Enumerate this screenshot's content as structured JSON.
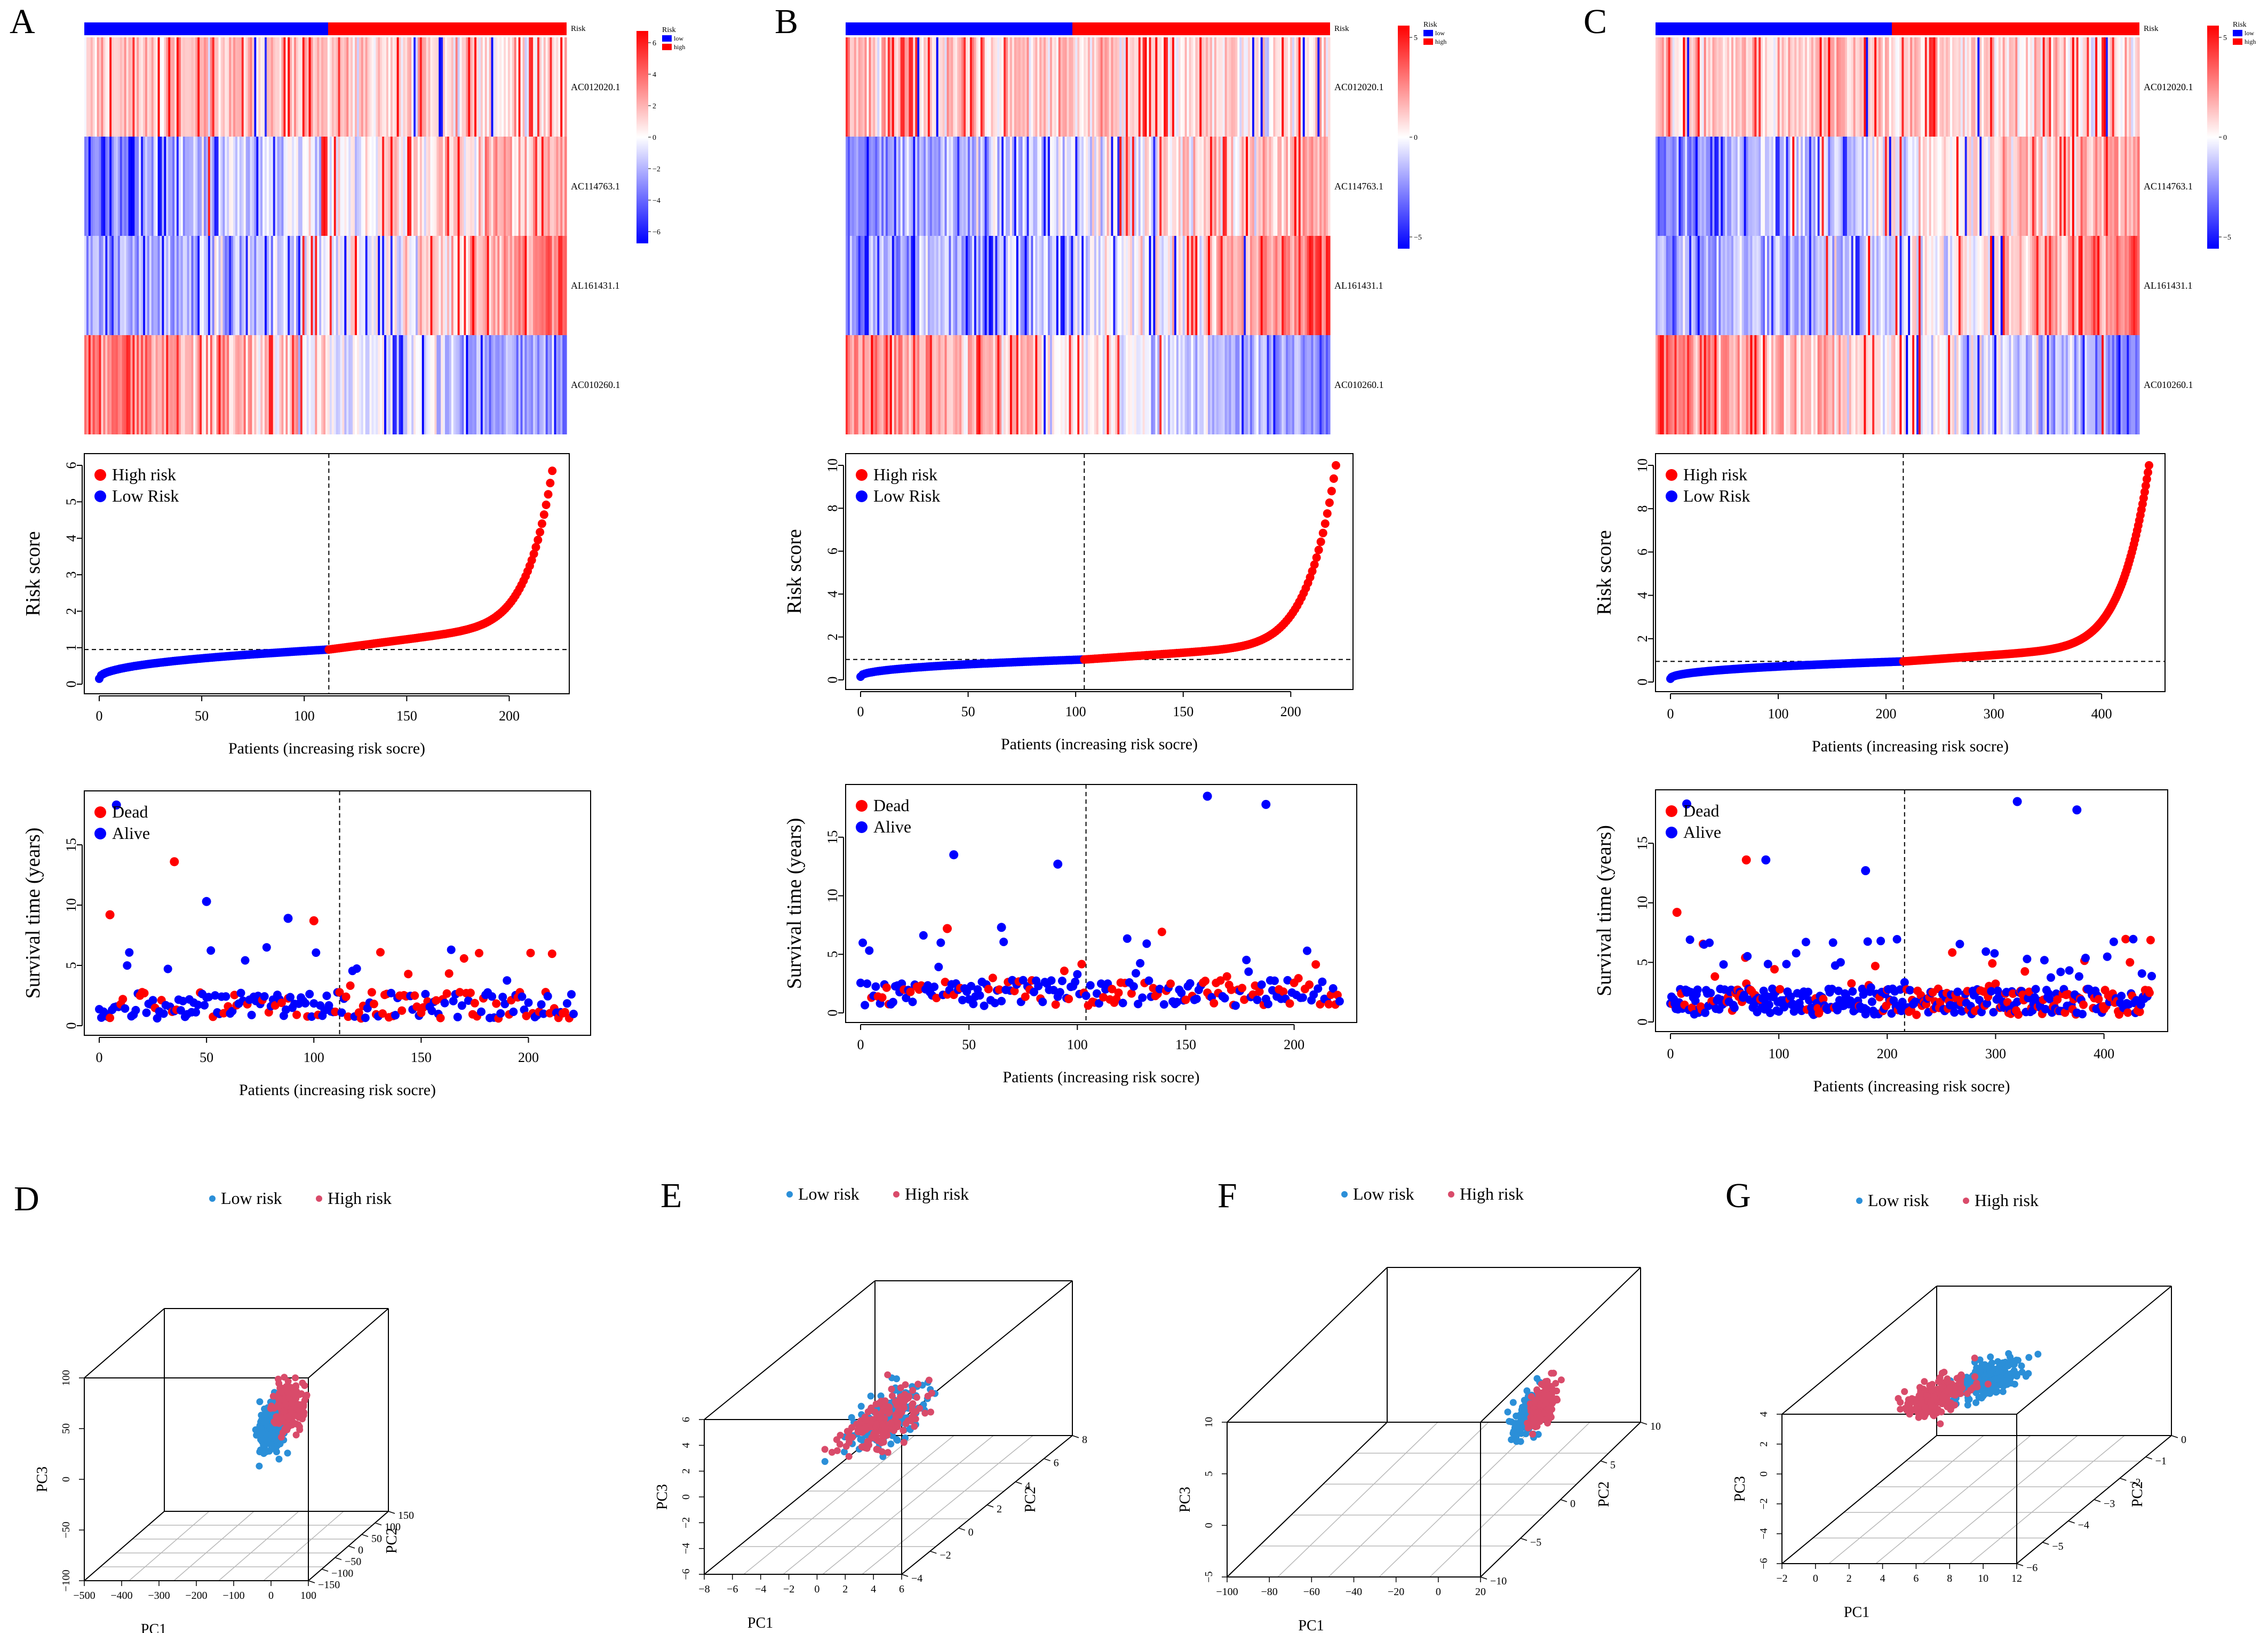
{
  "figure": {
    "panel_labels": [
      "A",
      "B",
      "C",
      "D",
      "E",
      "F",
      "G"
    ],
    "colors": {
      "red": "#ff0000",
      "blue": "#0000ff",
      "pca_low": "#2b8fd8",
      "pca_high": "#d94b6a",
      "grid": "#b8b8b8"
    }
  },
  "heatmap": {
    "genes": [
      "AC012020.1",
      "AC114763.1",
      "AL161431.1",
      "AC010260.1"
    ],
    "risk_label": "Risk",
    "legend_title": "Risk",
    "legend_items": [
      "low",
      "high"
    ],
    "scales": [
      {
        "ticks": [
          "6",
          "4",
          "2",
          "0",
          "−2",
          "−4",
          "−6"
        ]
      },
      {
        "ticks": [
          "5",
          "0",
          "−5"
        ]
      },
      {
        "ticks": [
          "5",
          "0",
          "−5"
        ]
      }
    ]
  },
  "chart_data": [
    {
      "panel": "A",
      "type": "scatter",
      "subtype": "risk_score_curve",
      "n_patients": 222,
      "cutoff_index": 112,
      "cutoff_score": 0.95,
      "xlabel": "Patients (increasing risk socre)",
      "ylabel": "Risk score",
      "xticks": [
        0,
        50,
        100,
        150,
        200
      ],
      "yticks": [
        0,
        1,
        2,
        3,
        4,
        5,
        6
      ],
      "ylim": [
        0,
        6
      ],
      "max_score": 5.85,
      "legend": [
        "High risk",
        "Low Risk"
      ]
    },
    {
      "panel": "B",
      "type": "scatter",
      "subtype": "risk_score_curve",
      "n_patients": 222,
      "cutoff_index": 104,
      "cutoff_score": 0.95,
      "xlabel": "Patients (increasing risk socre)",
      "ylabel": "Risk score",
      "xticks": [
        0,
        50,
        100,
        150,
        200
      ],
      "yticks": [
        0,
        2,
        4,
        6,
        8,
        10
      ],
      "ylim": [
        0,
        10
      ],
      "max_score": 10.0,
      "legend": [
        "High risk",
        "Low Risk"
      ]
    },
    {
      "panel": "C",
      "type": "scatter",
      "subtype": "risk_score_curve",
      "n_patients": 445,
      "cutoff_index": 216,
      "cutoff_score": 0.95,
      "xlabel": "Patients (increasing risk socre)",
      "ylabel": "Risk score",
      "xticks": [
        0,
        100,
        200,
        300,
        400
      ],
      "yticks": [
        0,
        2,
        4,
        6,
        8,
        10
      ],
      "ylim": [
        0,
        10
      ],
      "max_score": 10.0,
      "legend": [
        "High risk",
        "Low Risk"
      ]
    },
    {
      "panel": "A",
      "type": "scatter",
      "subtype": "survival_status",
      "n_patients": 222,
      "cutoff_index": 112,
      "xlabel": "Patients (increasing risk socre)",
      "ylabel": "Survival time (years)",
      "xticks": [
        0,
        50,
        100,
        150,
        200
      ],
      "yticks": [
        0,
        5,
        10,
        15
      ],
      "ylim": [
        0,
        18.5
      ],
      "legend": [
        "Dead",
        "Alive"
      ],
      "highlights": [
        [
          8,
          18.3,
          "alive"
        ],
        [
          5,
          9.2,
          "dead"
        ],
        [
          35,
          13.6,
          "dead"
        ],
        [
          50,
          10.3,
          "alive"
        ],
        [
          100,
          8.7,
          "dead"
        ],
        [
          88,
          8.9,
          "alive"
        ]
      ]
    },
    {
      "panel": "B",
      "type": "scatter",
      "subtype": "survival_status",
      "n_patients": 222,
      "cutoff_index": 104,
      "xlabel": "Patients (increasing risk socre)",
      "ylabel": "Survival time (years)",
      "xticks": [
        0,
        50,
        100,
        150,
        200
      ],
      "yticks": [
        0,
        5,
        10,
        15
      ],
      "ylim": [
        0,
        18.5
      ],
      "legend": [
        "Dead",
        "Alive"
      ],
      "highlights": [
        [
          43,
          13.5,
          "alive"
        ],
        [
          160,
          18.5,
          "alive"
        ],
        [
          187,
          17.8,
          "alive"
        ],
        [
          91,
          12.7,
          "alive"
        ],
        [
          40,
          7.2,
          "dead"
        ],
        [
          65,
          7.3,
          "alive"
        ]
      ]
    },
    {
      "panel": "C",
      "type": "scatter",
      "subtype": "survival_status",
      "n_patients": 445,
      "cutoff_index": 216,
      "xlabel": "Patients (increasing risk socre)",
      "ylabel": "Survival time (years)",
      "xticks": [
        0,
        100,
        200,
        300,
        400
      ],
      "yticks": [
        0,
        5,
        10,
        15
      ],
      "ylim": [
        0,
        18.5
      ],
      "legend": [
        "Dead",
        "Alive"
      ],
      "highlights": [
        [
          15,
          18.3,
          "alive"
        ],
        [
          6,
          9.2,
          "dead"
        ],
        [
          70,
          13.6,
          "dead"
        ],
        [
          88,
          13.6,
          "alive"
        ],
        [
          320,
          18.5,
          "alive"
        ],
        [
          375,
          17.8,
          "alive"
        ],
        [
          180,
          12.7,
          "alive"
        ]
      ]
    },
    {
      "panel": "D",
      "type": "scatter3d",
      "legend": [
        "Low risk",
        "High risk"
      ],
      "xlabel": "PC1",
      "ylabel": "PC2",
      "zlabel": "PC3",
      "xticks": [
        "−500",
        "−400",
        "−300",
        "−200",
        "−100",
        "0",
        "100"
      ],
      "yticks": [
        "−150",
        "−100",
        "−50",
        "0",
        "50",
        "100",
        "150"
      ],
      "zticks": [
        "−100",
        "−50",
        "0",
        "50",
        "100"
      ],
      "low_center": [
        0.64,
        0.55,
        0.57
      ],
      "high_center": [
        0.7,
        0.6,
        0.66
      ]
    },
    {
      "panel": "E",
      "type": "scatter3d",
      "legend": [
        "Low risk",
        "High risk"
      ],
      "xlabel": "PC1",
      "ylabel": "PC2",
      "zlabel": "PC3",
      "xticks": [
        "−8",
        "−6",
        "−4",
        "−2",
        "0",
        "2",
        "4",
        "6"
      ],
      "yticks": [
        "−4",
        "−2",
        "0",
        "2",
        "4",
        "6",
        "8"
      ],
      "zticks": [
        "−6",
        "−4",
        "−2",
        "0",
        "2",
        "4",
        "6"
      ],
      "low_center": [
        0.6,
        0.4,
        0.66
      ],
      "high_center": [
        0.55,
        0.4,
        0.63
      ]
    },
    {
      "panel": "F",
      "type": "scatter3d",
      "legend": [
        "Low risk",
        "High risk"
      ],
      "xlabel": "PC1",
      "ylabel": "PC2",
      "zlabel": "PC3",
      "xticks": [
        "−100",
        "−80",
        "−60",
        "−40",
        "−20",
        "0",
        "20"
      ],
      "yticks": [
        "−10",
        "−5",
        "0",
        "5",
        "10"
      ],
      "zticks": [
        "−5",
        "0",
        "5",
        "10"
      ],
      "low_center": [
        0.88,
        0.5,
        0.55
      ],
      "high_center": [
        0.92,
        0.52,
        0.6
      ]
    },
    {
      "panel": "G",
      "type": "scatter3d",
      "legend": [
        "Low risk",
        "High risk"
      ],
      "xlabel": "PC1",
      "ylabel": "PC2",
      "zlabel": "PC3",
      "xticks": [
        "−2",
        "0",
        "2",
        "4",
        "6",
        "8",
        "10",
        "12"
      ],
      "yticks": [
        "−6",
        "−5",
        "−4",
        "−3",
        "−2",
        "−1",
        "0"
      ],
      "zticks": [
        "−6",
        "−4",
        "−2",
        "0",
        "2",
        "4"
      ],
      "low_center": [
        0.62,
        0.4,
        0.9
      ],
      "high_center": [
        0.4,
        0.4,
        0.78
      ]
    }
  ]
}
